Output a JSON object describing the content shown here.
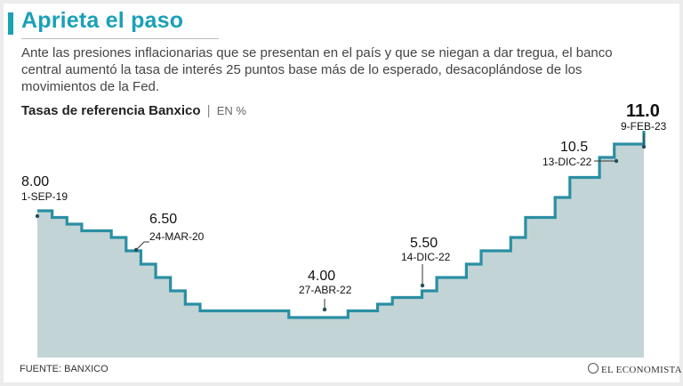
{
  "header": {
    "title": "Aprieta el paso",
    "subtitle": "Ante las presiones inflacionarias que se presentan en el país y que se niegan a dar tregua, el banco central aumentó la tasa de interés 25 puntos base más de lo esperado, desacoplándose de los movimientos de la Fed."
  },
  "chart_title": {
    "name": "Tasas de referencia Banxico",
    "separator": "|",
    "unit": "EN %"
  },
  "chart_data": {
    "type": "line",
    "step": true,
    "title": "Tasas de referencia Banxico",
    "unit": "EN %",
    "x": [
      "2019-09",
      "2019-10",
      "2019-11",
      "2019-12",
      "2020-02",
      "2020-03",
      "2020-04",
      "2020-05",
      "2020-06",
      "2020-07",
      "2020-08",
      "2020-09",
      "2020-11",
      "2021-02",
      "2021-03",
      "2021-06",
      "2021-08",
      "2021-09",
      "2021-11",
      "2021-12",
      "2022-02",
      "2022-03",
      "2022-05",
      "2022-06",
      "2022-08",
      "2022-09",
      "2022-11",
      "2022-12",
      "2023-02"
    ],
    "values": [
      8.0,
      7.75,
      7.5,
      7.25,
      7.0,
      6.5,
      6.0,
      5.5,
      5.0,
      4.5,
      4.25,
      4.25,
      4.25,
      4.0,
      4.0,
      4.25,
      4.5,
      4.75,
      5.0,
      5.5,
      6.0,
      6.5,
      7.0,
      7.75,
      8.5,
      9.25,
      10.0,
      10.5,
      11.0
    ],
    "annotations": [
      {
        "value": "8.00",
        "date": "1-SEP-19"
      },
      {
        "value": "6.50",
        "date": "24-MAR-20"
      },
      {
        "value": "4.00",
        "date": "27-ABR-22"
      },
      {
        "value": "5.50",
        "date": "14-DIC-22"
      },
      {
        "value": "10.5",
        "date": "13-DIC-22"
      },
      {
        "value": "11.0",
        "date": "9-FEB-23"
      }
    ],
    "ylim": [
      2.5,
      11.5
    ],
    "grid": false,
    "colors": {
      "line": "#2a8fa3",
      "fill": "#b8cdcf",
      "accent": "#1aa0b8"
    }
  },
  "footer": {
    "source": "FUENTE: BANXICO",
    "logo": "EL ECONOMISTA"
  }
}
